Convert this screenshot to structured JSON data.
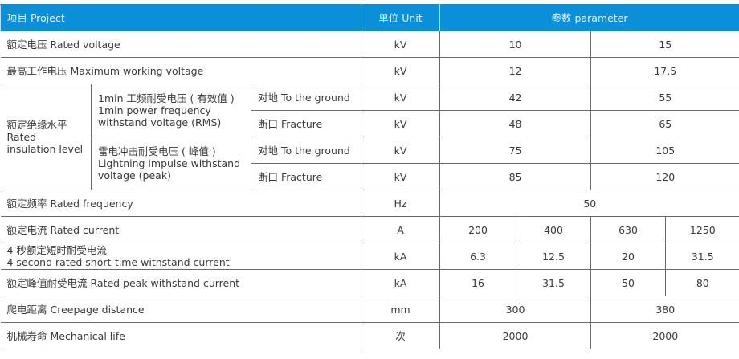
{
  "header": {
    "project": "项目 Project",
    "unit": "单位 Unit",
    "parameter": "参数 parameter"
  },
  "colors": {
    "header_bg": "#0b8fd8"
  },
  "rows": {
    "rated_voltage": {
      "label": "额定电压 Rated voltage",
      "unit": "kV",
      "values": [
        "10",
        "15"
      ]
    },
    "max_voltage": {
      "label": "最高工作电压 Maximum working voltage",
      "unit": "kV",
      "values": [
        "12",
        "17.5"
      ]
    },
    "insulation": {
      "label_cn": "额定绝缘水平",
      "label_en": "Rated insulation level",
      "power_freq": {
        "l1": "1min 工频耐受电压 ( 有效值 )",
        "l2": "1min power frequency",
        "l3": "withstand voltage (RMS)"
      },
      "lightning": {
        "l1": "雷电冲击耐受电压 ( 峰值 )",
        "l2": "Lightning impulse withstand",
        "l3": "voltage (peak)"
      },
      "ground": "对地 To the ground",
      "fracture": "断口 Fracture",
      "unit": "kV",
      "pf_ground": [
        "42",
        "55"
      ],
      "pf_fracture": [
        "48",
        "65"
      ],
      "li_ground": [
        "75",
        "105"
      ],
      "li_fracture": [
        "85",
        "120"
      ]
    },
    "frequency": {
      "label": "额定频率 Rated frequency",
      "unit": "Hz",
      "value": "50"
    },
    "current": {
      "label": "额定电流 Rated current",
      "unit": "A",
      "values": [
        "200",
        "400",
        "630",
        "1250"
      ]
    },
    "short_time": {
      "label_cn": "4 秒额定短时耐受电流",
      "label_en": "4 second rated short-time withstand current",
      "unit": "kA",
      "values": [
        "6.3",
        "12.5",
        "20",
        "31.5"
      ]
    },
    "peak": {
      "label": "额定峰值耐受电流 Rated peak withstand current",
      "unit": "kA",
      "values": [
        "16",
        "31.5",
        "50",
        "80"
      ]
    },
    "creepage": {
      "label": "爬电距离 Creepage distance",
      "unit": "mm",
      "values": [
        "300",
        "380"
      ]
    },
    "mechanical": {
      "label": "机械寿命 Mechanical life",
      "unit": "次",
      "values": [
        "2000",
        "2000"
      ]
    }
  }
}
